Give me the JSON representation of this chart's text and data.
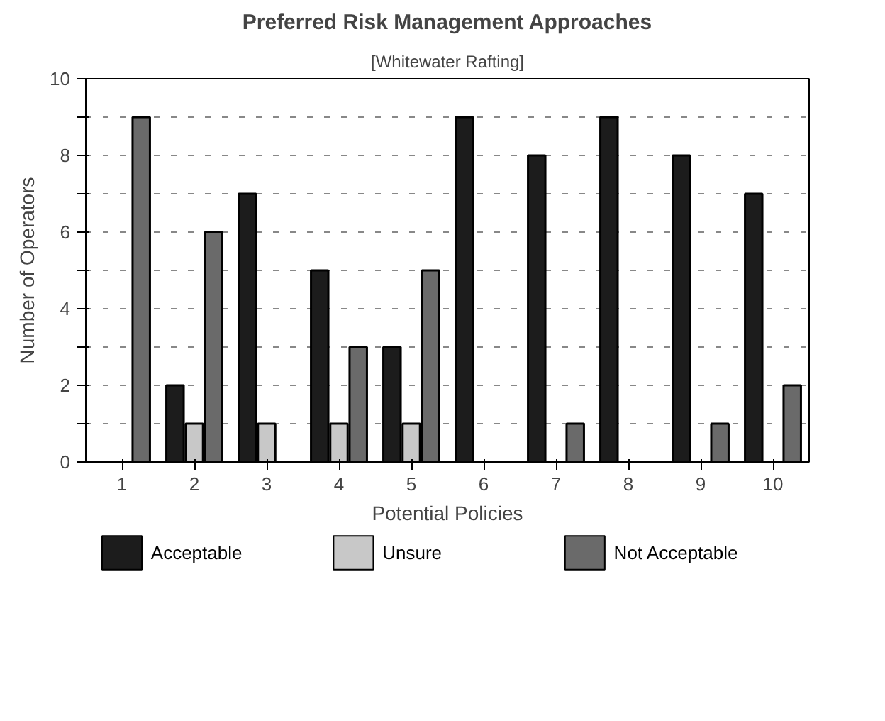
{
  "chart_data": {
    "type": "bar",
    "title": "Preferred Risk Management Approaches",
    "subtitle": "[Whitewater Rafting]",
    "xlabel": "Potential Policies",
    "ylabel": "Number of Operators",
    "categories": [
      "1",
      "2",
      "3",
      "4",
      "5",
      "6",
      "7",
      "8",
      "9",
      "10"
    ],
    "series": [
      {
        "name": "Acceptable",
        "color": "#1c1c1c",
        "values": [
          0,
          2,
          7,
          5,
          3,
          9,
          8,
          9,
          8,
          7
        ]
      },
      {
        "name": "Unsure",
        "color": "#c8c8c8",
        "values": [
          0,
          1,
          1,
          1,
          1,
          0,
          0,
          0,
          0,
          0
        ]
      },
      {
        "name": "Not Acceptable",
        "color": "#6a6a6a",
        "values": [
          9,
          6,
          0,
          3,
          5,
          0,
          1,
          0,
          1,
          2
        ]
      }
    ],
    "ylim": [
      0,
      10
    ],
    "yticks": [
      0,
      {
        "value": 1,
        "label": null
      },
      2,
      {
        "value": 3,
        "label": null
      },
      4,
      {
        "value": 5,
        "label": null
      },
      6,
      {
        "value": 7,
        "label": null
      },
      8,
      {
        "value": 9,
        "label": null
      },
      10
    ],
    "grid": "y",
    "legend": "bottom"
  }
}
